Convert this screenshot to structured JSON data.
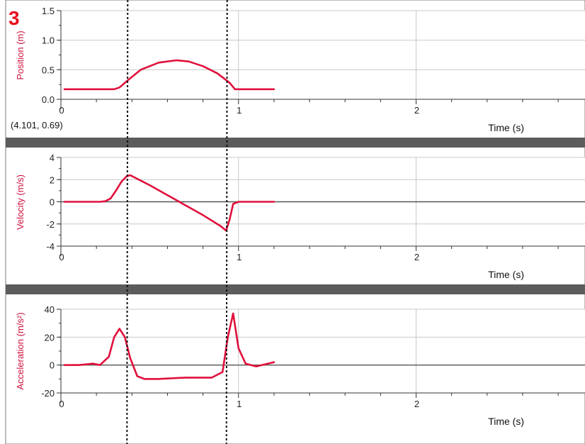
{
  "panel_number": "3",
  "cursor_readout": "(4.101, 0.69)",
  "colors": {
    "series": "#e0103c",
    "axis_label": "#d0103c",
    "panel_number": "#e8101e",
    "divider": "#5c5c5c",
    "grid": "#c8c8c8"
  },
  "chart_data": [
    {
      "type": "line",
      "xlabel": "Time (s)",
      "ylabel": "Position (m)",
      "xlim": [
        0,
        3
      ],
      "ylim": [
        0,
        1.5
      ],
      "xticks": [
        "0",
        "1",
        "2"
      ],
      "yticks": [
        "0.0",
        "0.5",
        "1.0",
        "1.5"
      ],
      "grid": true,
      "x": [
        0.02,
        0.3,
        0.33,
        0.38,
        0.45,
        0.55,
        0.65,
        0.72,
        0.8,
        0.88,
        0.95,
        0.98,
        1.2
      ],
      "y": [
        0.17,
        0.17,
        0.2,
        0.33,
        0.5,
        0.62,
        0.66,
        0.64,
        0.56,
        0.44,
        0.28,
        0.17,
        0.17
      ]
    },
    {
      "type": "line",
      "xlabel": "Time (s)",
      "ylabel": "Velocity (m/s)",
      "xlim": [
        0,
        3
      ],
      "ylim": [
        -4,
        4
      ],
      "xticks": [
        "0",
        "1",
        "2"
      ],
      "yticks": [
        "-4",
        "-2",
        "0",
        "2",
        "4"
      ],
      "grid": true,
      "x": [
        0.02,
        0.22,
        0.25,
        0.28,
        0.31,
        0.34,
        0.37,
        0.39,
        0.5,
        0.6,
        0.7,
        0.8,
        0.9,
        0.93,
        0.95,
        0.97,
        1.0,
        1.2
      ],
      "y": [
        0,
        0,
        0.05,
        0.3,
        1.0,
        1.8,
        2.3,
        2.4,
        1.5,
        0.6,
        -0.3,
        -1.2,
        -2.2,
        -2.6,
        -1.6,
        -0.2,
        0,
        0
      ]
    },
    {
      "type": "line",
      "xlabel": "Time (s)",
      "ylabel": "Acceleration (m/s²)",
      "xlim": [
        0,
        3
      ],
      "ylim": [
        -20,
        40
      ],
      "xticks": [
        "0",
        "1",
        "2"
      ],
      "yticks": [
        "-20",
        "0",
        "20",
        "40"
      ],
      "grid": true,
      "x": [
        0.02,
        0.1,
        0.18,
        0.22,
        0.27,
        0.3,
        0.33,
        0.36,
        0.39,
        0.43,
        0.47,
        0.55,
        0.7,
        0.85,
        0.91,
        0.94,
        0.97,
        1.0,
        1.04,
        1.1,
        1.2
      ],
      "y": [
        0,
        0,
        1,
        0,
        6,
        20,
        26,
        20,
        5,
        -8,
        -10,
        -10,
        -9,
        -9,
        -5,
        20,
        37,
        12,
        1,
        -1,
        2
      ]
    }
  ],
  "cursor_lines_x": [
    0.38,
    0.94
  ]
}
